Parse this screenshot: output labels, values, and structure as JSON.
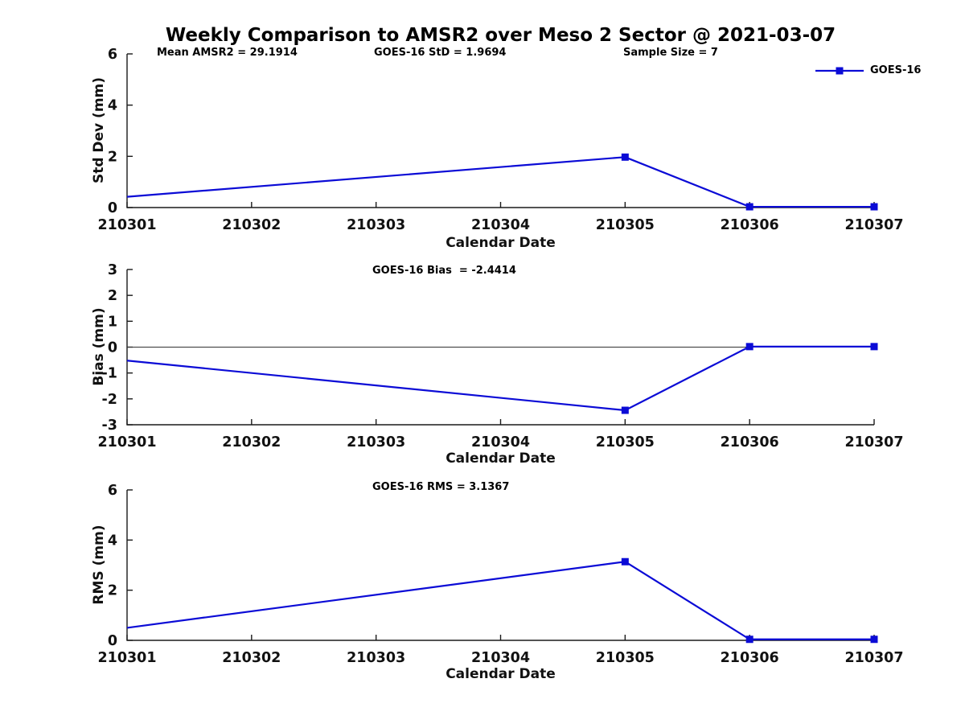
{
  "title": "Weekly Comparison to AMSR2 over Meso 2 Sector @ 2021-03-07",
  "legend": {
    "label": "GOES-16"
  },
  "colors": {
    "line": "#0b0bd6",
    "axis": "#1a1a1a",
    "zero_line": "#333333"
  },
  "stats": {
    "mean_amsr2": 29.1914,
    "goes16_std": 1.9694,
    "sample_size": 7,
    "goes16_bias": -2.4414,
    "goes16_rms": 3.1367
  },
  "chart_data": [
    {
      "id": "std-dev",
      "type": "line",
      "annotations": {
        "mean": "Mean AMSR2 = 29.1914",
        "std": "GOES-16 StD = 1.9694",
        "sample": "Sample Size = 7"
      },
      "ylabel": "Std Dev (mm)",
      "xlabel": "Calendar Date",
      "ylim": [
        0,
        6
      ],
      "yticks": [
        0,
        2,
        4,
        6
      ],
      "xticks": [
        "210301",
        "210302",
        "210303",
        "210304",
        "210305",
        "210306",
        "210307"
      ],
      "zero_line": false,
      "legend_position": "top-right-inside",
      "grid": false,
      "series": [
        {
          "name": "GOES-16",
          "points": [
            {
              "date": "210301",
              "value": 0.42,
              "marker": false
            },
            {
              "date": "210305",
              "value": 1.9694,
              "marker": true
            },
            {
              "date": "210306",
              "value": 0.03,
              "marker": true
            },
            {
              "date": "210307",
              "value": 0.03,
              "marker": true
            }
          ]
        }
      ]
    },
    {
      "id": "bias",
      "type": "line",
      "annotations": {
        "bias": "GOES-16 Bias  = -2.4414"
      },
      "ylabel": "Bias (mm)",
      "xlabel": "Calendar Date",
      "ylim": [
        -3,
        3
      ],
      "yticks": [
        -3,
        -2,
        -1,
        0,
        1,
        2,
        3
      ],
      "xticks": [
        "210301",
        "210302",
        "210303",
        "210304",
        "210305",
        "210306",
        "210307"
      ],
      "zero_line": true,
      "grid": false,
      "series": [
        {
          "name": "GOES-16",
          "points": [
            {
              "date": "210301",
              "value": -0.52,
              "marker": false
            },
            {
              "date": "210305",
              "value": -2.4414,
              "marker": true
            },
            {
              "date": "210306",
              "value": 0.02,
              "marker": true
            },
            {
              "date": "210307",
              "value": 0.02,
              "marker": true
            }
          ]
        }
      ]
    },
    {
      "id": "rms",
      "type": "line",
      "annotations": {
        "rms": "GOES-16 RMS = 3.1367"
      },
      "ylabel": "RMS (mm)",
      "xlabel": "Calendar Date",
      "ylim": [
        0,
        6
      ],
      "yticks": [
        0,
        2,
        4,
        6
      ],
      "xticks": [
        "210301",
        "210302",
        "210303",
        "210304",
        "210305",
        "210306",
        "210307"
      ],
      "zero_line": false,
      "grid": false,
      "series": [
        {
          "name": "GOES-16",
          "points": [
            {
              "date": "210301",
              "value": 0.5,
              "marker": false
            },
            {
              "date": "210305",
              "value": 3.1367,
              "marker": true
            },
            {
              "date": "210306",
              "value": 0.04,
              "marker": true
            },
            {
              "date": "210307",
              "value": 0.04,
              "marker": true
            }
          ]
        }
      ]
    }
  ]
}
